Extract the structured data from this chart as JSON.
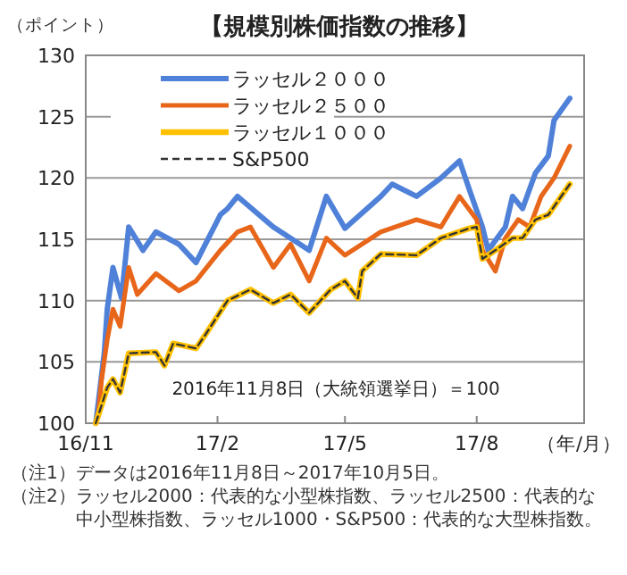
{
  "chart_data": {
    "type": "line",
    "title": "【規模別株価指数の推移】",
    "ylabel": "（ポイント）",
    "xlabel": "（年/月）",
    "xlim": [
      "2016-11-01",
      "2017-10-15"
    ],
    "xticks": [
      {
        "value": "2016-11-01",
        "label": "16/11"
      },
      {
        "value": "2017-02-01",
        "label": "17/2"
      },
      {
        "value": "2017-05-01",
        "label": "17/5"
      },
      {
        "value": "2017-08-01",
        "label": "17/8"
      }
    ],
    "ylim": [
      100,
      130
    ],
    "yticks": [
      100,
      105,
      110,
      115,
      120,
      125,
      130
    ],
    "grid": "y",
    "legend": "top left",
    "annotations": [
      "2016年11月8日（大統領選挙日）＝100",
      "（注1）データは2016年11月8日～2017年10月5日。",
      "（注2）ラッセル2000：代表的な小型株指数、ラッセル2500：代表的な中小型株指数、ラッセル1000・S&P500：代表的な大型株指数。"
    ],
    "series": [
      {
        "name": "ラッセル２０００",
        "color": "#4f81d9",
        "line_style": "solid",
        "x": [
          "2016-11-08",
          "2016-11-14",
          "2016-11-16",
          "2016-11-20",
          "2016-11-26",
          "2016-12-01",
          "2016-12-11",
          "2016-12-20",
          "2017-01-05",
          "2017-01-17",
          "2017-02-03",
          "2017-02-08",
          "2017-02-15",
          "2017-03-12",
          "2017-04-06",
          "2017-04-18",
          "2017-05-01",
          "2017-05-26",
          "2017-06-03",
          "2017-06-20",
          "2017-07-07",
          "2017-07-20",
          "2017-07-27",
          "2017-08-05",
          "2017-08-09",
          "2017-08-21",
          "2017-08-26",
          "2017-09-02",
          "2017-09-11",
          "2017-09-20",
          "2017-09-24",
          "2017-10-05"
        ],
        "values": [
          100,
          105.8,
          109.3,
          112.7,
          110.2,
          116,
          114.1,
          115.6,
          114.6,
          113.1,
          117,
          117.5,
          118.5,
          116,
          114.1,
          118.5,
          115.9,
          118.5,
          119.5,
          118.5,
          120,
          121.4,
          119,
          116,
          114.1,
          116,
          118.5,
          117.5,
          120.4,
          121.8,
          124.7,
          126.5
        ]
      },
      {
        "name": "ラッセル２５００",
        "color": "#e8661a",
        "line_style": "solid",
        "x": [
          "2016-11-08",
          "2016-11-10",
          "2016-11-12",
          "2016-11-16",
          "2016-11-20",
          "2016-11-25",
          "2016-12-01",
          "2016-12-07",
          "2016-12-20",
          "2017-01-05",
          "2017-01-17",
          "2017-02-03",
          "2017-02-15",
          "2017-02-24",
          "2017-03-12",
          "2017-03-24",
          "2017-04-06",
          "2017-04-18",
          "2017-05-01",
          "2017-05-26",
          "2017-06-20",
          "2017-07-07",
          "2017-07-20",
          "2017-08-01",
          "2017-08-05",
          "2017-08-14",
          "2017-08-21",
          "2017-08-30",
          "2017-09-07",
          "2017-09-15",
          "2017-09-24",
          "2017-10-05"
        ],
        "values": [
          100,
          101,
          103.5,
          106.8,
          109.3,
          107.9,
          112.7,
          110.5,
          112.2,
          110.8,
          111.6,
          114.1,
          115.6,
          116,
          112.7,
          114.6,
          111.6,
          115.1,
          113.7,
          115.6,
          116.6,
          116,
          118.5,
          116.6,
          114.1,
          112.4,
          115.1,
          116.6,
          116,
          118.5,
          120,
          122.6
        ]
      },
      {
        "name": "ラッセル１０００",
        "color": "#ffc000",
        "line_style": "solid",
        "x": [
          "2016-11-08",
          "2016-11-16",
          "2016-11-20",
          "2016-11-25",
          "2016-12-01",
          "2016-12-20",
          "2016-12-26",
          "2017-01-01",
          "2017-01-17",
          "2017-01-24",
          "2017-02-08",
          "2017-02-24",
          "2017-03-12",
          "2017-03-24",
          "2017-04-06",
          "2017-04-21",
          "2017-05-01",
          "2017-05-10",
          "2017-05-13",
          "2017-05-26",
          "2017-06-20",
          "2017-07-07",
          "2017-07-27",
          "2017-08-01",
          "2017-08-05",
          "2017-08-14",
          "2017-08-26",
          "2017-09-02",
          "2017-09-11",
          "2017-09-20",
          "2017-10-05"
        ],
        "values": [
          100,
          102.9,
          103.6,
          102.5,
          105.7,
          105.8,
          104.7,
          106.5,
          106.1,
          107.3,
          110,
          110.9,
          109.8,
          110.5,
          109,
          110.9,
          111.6,
          110.2,
          112.4,
          113.8,
          113.7,
          115.1,
          115.9,
          116,
          113.4,
          114.1,
          115.1,
          115.1,
          116.6,
          117,
          119.5
        ]
      },
      {
        "name": "S&P500",
        "color": "#333333",
        "line_style": "dashed",
        "x": [
          "2016-11-08",
          "2016-11-16",
          "2016-11-20",
          "2016-11-25",
          "2016-12-01",
          "2016-12-20",
          "2016-12-26",
          "2017-01-01",
          "2017-01-17",
          "2017-01-24",
          "2017-02-08",
          "2017-02-24",
          "2017-03-12",
          "2017-03-24",
          "2017-04-06",
          "2017-04-21",
          "2017-05-01",
          "2017-05-10",
          "2017-05-13",
          "2017-05-26",
          "2017-06-20",
          "2017-07-07",
          "2017-07-27",
          "2017-08-01",
          "2017-08-05",
          "2017-08-14",
          "2017-08-26",
          "2017-09-02",
          "2017-09-11",
          "2017-09-20",
          "2017-10-05"
        ],
        "values": [
          100,
          102.9,
          103.6,
          102.5,
          105.7,
          105.8,
          104.7,
          106.5,
          106.1,
          107.3,
          110,
          110.9,
          109.8,
          110.5,
          109,
          110.9,
          111.6,
          110.2,
          112.4,
          113.8,
          113.7,
          115.1,
          115.9,
          116,
          113.4,
          114.1,
          115.1,
          115.1,
          116.6,
          117,
          119.5
        ]
      }
    ]
  }
}
